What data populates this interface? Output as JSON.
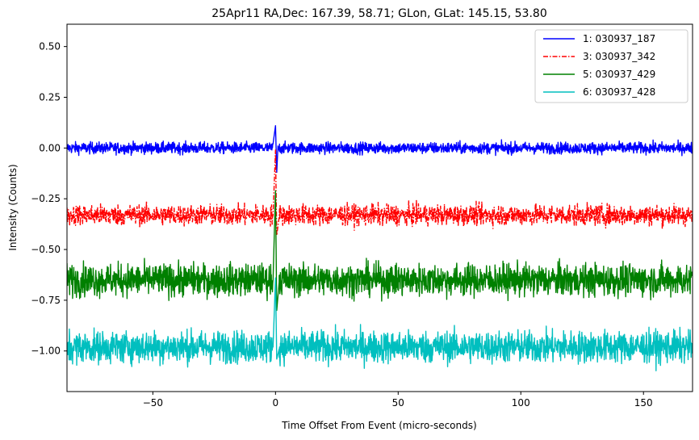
{
  "chart_data": {
    "type": "line",
    "title": "25Apr11 RA,Dec:  167.39,  58.71; GLon, GLat:  145.15,  53.80",
    "xlabel": "Time Offset From Event (micro-seconds)",
    "ylabel": "Intensity (Counts)",
    "xlim": [
      -85,
      170
    ],
    "ylim": [
      -1.2,
      0.61
    ],
    "xticks": [
      -50,
      0,
      50,
      100,
      150
    ],
    "xtick_labels": [
      "−50",
      "0",
      "50",
      "100",
      "150"
    ],
    "yticks": [
      0.5,
      0.25,
      0.0,
      -0.25,
      -0.5,
      -0.75,
      -1.0
    ],
    "ytick_labels": [
      "0.50",
      "0.25",
      "0.00",
      "−0.25",
      "−0.50",
      "−0.75",
      "−1.00"
    ],
    "grid": false,
    "legend_position": "top-right",
    "series": [
      {
        "name": "1: 030937_187",
        "color": "#0000ff",
        "linestyle": "solid",
        "baseline": 0.0,
        "noise_amplitude": 0.025,
        "spike_x": [
          -1,
          0,
          0.5,
          1
        ],
        "spike_y": [
          0.02,
          0.11,
          -0.12,
          0.01
        ]
      },
      {
        "name": "3: 030937_342",
        "color": "#ff0000",
        "linestyle": "dashdot",
        "baseline": -0.33,
        "noise_amplitude": 0.045,
        "spike_x": [
          -1,
          0,
          0.5,
          1.5
        ],
        "spike_y": [
          -0.33,
          -0.01,
          -0.43,
          -0.34
        ]
      },
      {
        "name": "5: 030937_429",
        "color": "#008000",
        "linestyle": "solid",
        "baseline": -0.65,
        "noise_amplitude": 0.07,
        "spike_x": [
          -1,
          0,
          0.5,
          1.5
        ],
        "spike_y": [
          -0.65,
          -0.21,
          -0.8,
          -0.66
        ]
      },
      {
        "name": "6: 030937_428",
        "color": "#00bfbf",
        "linestyle": "solid",
        "baseline": -0.98,
        "noise_amplitude": 0.07,
        "spike_x": [
          -1,
          0,
          0.5,
          1.5
        ],
        "spike_y": [
          -0.98,
          -0.64,
          -1.04,
          -0.99
        ]
      }
    ]
  }
}
